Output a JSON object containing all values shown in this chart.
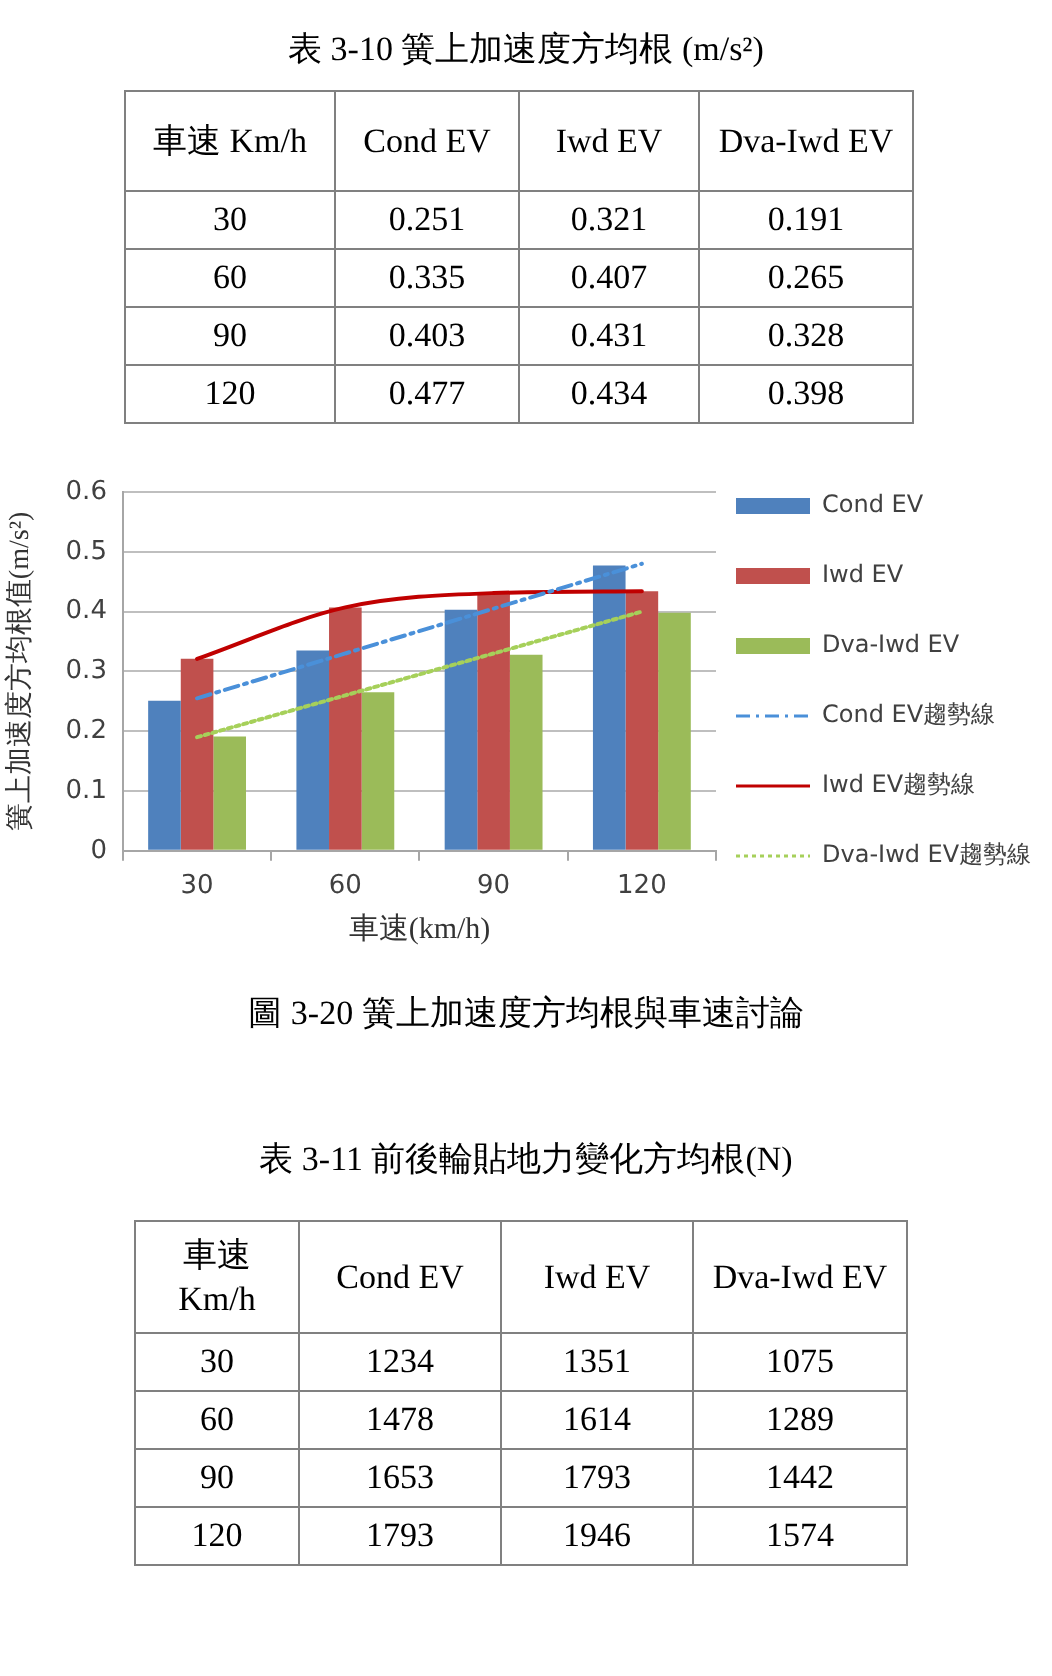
{
  "chart_data": [
    {
      "type": "heatmap",
      "title": "表 3-10 簧上加速度方均根 (m/s²)",
      "ylabel": "車速 Km/h",
      "categories": [
        "Cond EV",
        "Iwd EV",
        "Dva-Iwd EV"
      ],
      "y_categories": [
        "30",
        "60",
        "90",
        "120"
      ],
      "cells": [
        [
          0.251,
          0.321,
          0.191
        ],
        [
          0.335,
          0.407,
          0.265
        ],
        [
          0.403,
          0.431,
          0.328
        ],
        [
          0.477,
          0.434,
          0.398
        ]
      ],
      "data_labels": true
    },
    {
      "type": "bar",
      "title": "圖 3-20 簧上加速度方均根與車速討論",
      "xlabel": "車速(km/h)",
      "ylabel": "簧上加速度方均根值(m/s²)",
      "categories": [
        "30",
        "60",
        "90",
        "120"
      ],
      "series": [
        {
          "name": "Cond EV",
          "color": "#4f81bd",
          "values": [
            0.251,
            0.335,
            0.403,
            0.477
          ]
        },
        {
          "name": "Iwd EV",
          "color": "#c0504d",
          "values": [
            0.321,
            0.407,
            0.431,
            0.434
          ]
        },
        {
          "name": "Dva-Iwd EV",
          "color": "#9bbb59",
          "values": [
            0.191,
            0.265,
            0.328,
            0.398
          ]
        },
        {
          "name": "Cond EV趨勢線",
          "type": "line",
          "color": "#4a90d9",
          "line_style": "dashed",
          "values": [
            0.255,
            0.33,
            0.405,
            0.48
          ]
        },
        {
          "name": "Iwd EV趨勢線",
          "type": "line",
          "color": "#c00000",
          "line_style": "solid",
          "values": [
            0.321,
            0.407,
            0.431,
            0.434
          ]
        },
        {
          "name": "Dva-Iwd EV趨勢線",
          "type": "line",
          "color": "#a6d05a",
          "line_style": "dotted",
          "values": [
            0.19,
            0.26,
            0.33,
            0.4
          ]
        }
      ],
      "ylim": [
        0,
        0.6
      ],
      "yticks": [
        0,
        0.1,
        0.2,
        0.3,
        0.4,
        0.5,
        0.6
      ],
      "grid": "y",
      "legend": "right"
    },
    {
      "type": "heatmap",
      "title": "表 3-11 前後輪貼地力變化方均根(N)",
      "ylabel": "車速 Km/h",
      "categories": [
        "Cond EV",
        "Iwd EV",
        "Dva-Iwd EV"
      ],
      "y_categories": [
        "30",
        "60",
        "90",
        "120"
      ],
      "cells": [
        [
          1234,
          1351,
          1075
        ],
        [
          1478,
          1614,
          1289
        ],
        [
          1653,
          1793,
          1442
        ],
        [
          1793,
          1946,
          1574
        ]
      ],
      "data_labels": true
    }
  ]
}
